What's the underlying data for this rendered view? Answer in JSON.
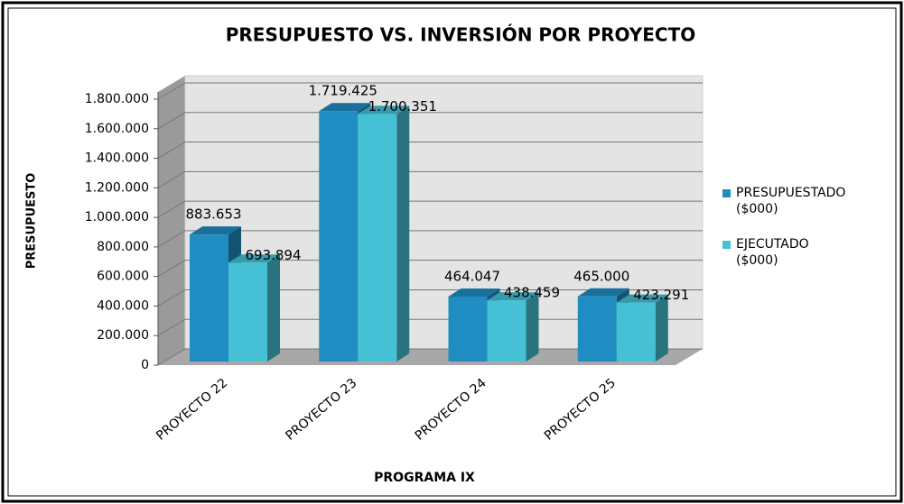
{
  "chart_data": {
    "type": "bar3d",
    "title": "PRESUPUESTO VS. INVERSIÓN POR PROYECTO",
    "y_label": "PRESUPUESTO",
    "x_label": "PROGRAMA IX",
    "categories": [
      "PROYECTO 22",
      "PROYECTO 23",
      "PROYECTO 24",
      "PROYECTO 25"
    ],
    "series": [
      {
        "name": "PRESUPUESTADO ($000)",
        "color": "#1f8cc2",
        "values": [
          883653,
          1719425,
          464047,
          465000
        ],
        "value_labels": [
          "883.653",
          "1.719.425",
          "464.047",
          "465.000"
        ]
      },
      {
        "name": "EJECUTADO ($000)",
        "color": "#45c0d4",
        "values": [
          693894,
          1700351,
          438459,
          423291
        ],
        "value_labels": [
          "693.894",
          "1.700.351",
          "438.459",
          "423.291"
        ]
      }
    ],
    "ylim": [
      0,
      1800000
    ],
    "yticks": [
      0,
      {
        "value": 200000,
        "label": "200.000"
      },
      {
        "value": 400000,
        "label": "400.000"
      },
      {
        "value": 600000,
        "label": "600.000"
      },
      {
        "value": 800000,
        "label": "800.000"
      },
      {
        "value": 1000000,
        "label": "1.000.000"
      },
      {
        "value": 1200000,
        "label": "1.200.000"
      },
      {
        "value": 1400000,
        "label": "1.400.000"
      },
      {
        "value": 1600000,
        "label": "1.600.000"
      },
      {
        "value": 1800000,
        "label": "1.800.000"
      }
    ],
    "grid": true,
    "legend": "right"
  }
}
